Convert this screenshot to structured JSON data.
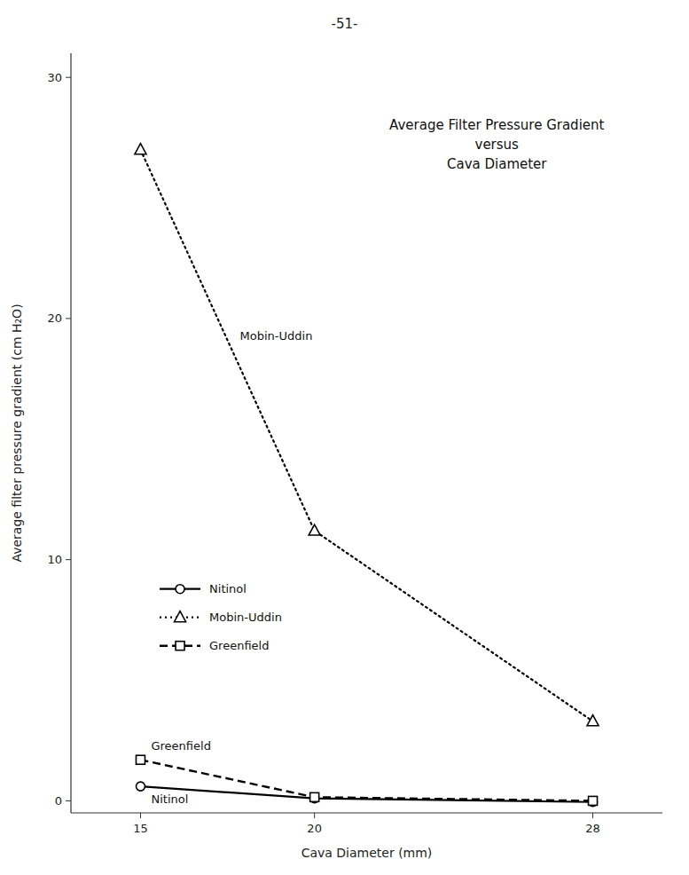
{
  "chart_data": {
    "type": "line",
    "title": [
      "Average Filter Pressure Gradient",
      "versus",
      "Cava Diameter"
    ],
    "x_label": "Cava Diameter  (mm)",
    "y_label": "Average filter pressure gradient  (cm H₂O)",
    "annotations": [
      "-51-",
      "Mobin-Uddin",
      "Nitinol",
      "Greenfield"
    ],
    "x": [
      15,
      20,
      28
    ],
    "series": [
      {
        "name": "Nitinol",
        "color": "black",
        "values": [
          0.6,
          0.1,
          -0.05
        ],
        "marker": "circle",
        "line_style": "solid"
      },
      {
        "name": "Mobin-Uddin",
        "color": "black",
        "values": [
          27.0,
          11.2,
          3.3
        ],
        "marker": "triangle",
        "line_style": "dotted"
      },
      {
        "name": "Greenfield",
        "color": "black",
        "values": [
          1.7,
          0.15,
          0.0
        ],
        "marker": "square",
        "line_style": "dashed"
      }
    ],
    "xlim": [
      13,
      30
    ],
    "ylim": [
      -0.5,
      31
    ],
    "xticks": [
      15,
      20,
      28
    ],
    "yticks": [
      0,
      10,
      20,
      30
    ],
    "grid": false,
    "legend": "lower left"
  }
}
